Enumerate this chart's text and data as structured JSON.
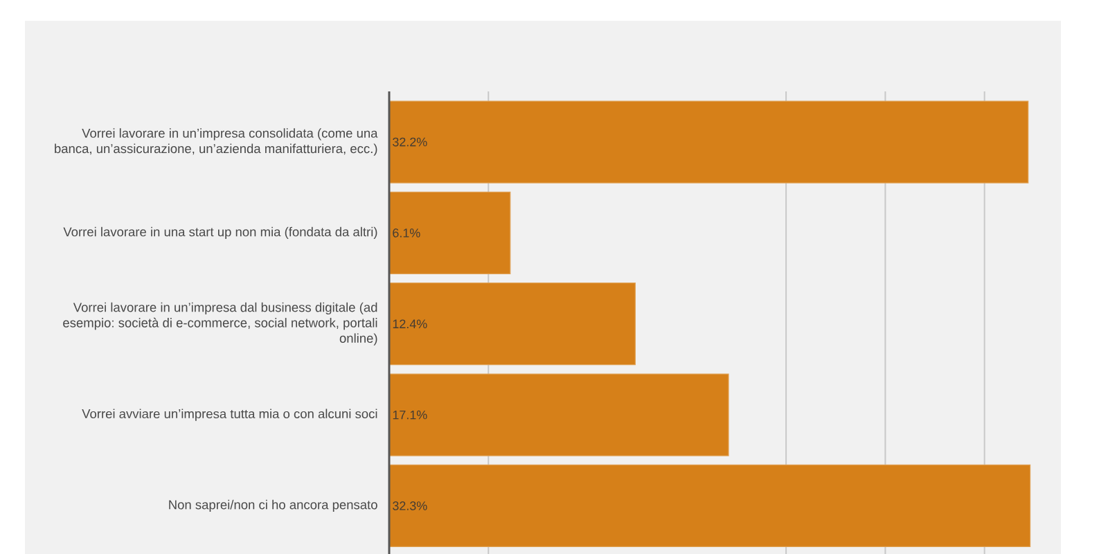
{
  "chart_data": {
    "type": "bar",
    "orientation": "horizontal",
    "categories": [
      "Vorrei lavorare in un’impresa consolidata (come una banca, un’assicurazione, un’azienda manifatturiera, ecc.)",
      "Vorrei lavorare in una start up non mia (fondata da altri)",
      "Vorrei lavorare in un’impresa dal business digitale (ad esempio: società di e-commerce, social network, portali online)",
      "Vorrei avviare un’impresa tutta mia o con alcuni soci",
      "Non saprei/non ci ho ancora pensato"
    ],
    "values": [
      32.2,
      6.1,
      12.4,
      17.1,
      32.3
    ],
    "value_labels": [
      "32.2%",
      "6.1%",
      "12.4%",
      "17.1%",
      "32.3%"
    ],
    "color": "#d68019",
    "xticks": [
      {
        "value": 5,
        "label": null
      },
      {
        "value": 20,
        "label": null
      },
      {
        "value": 25,
        "label": null
      },
      {
        "value": 30,
        "label": null
      }
    ],
    "grid": "x",
    "tick_labels": "y"
  }
}
